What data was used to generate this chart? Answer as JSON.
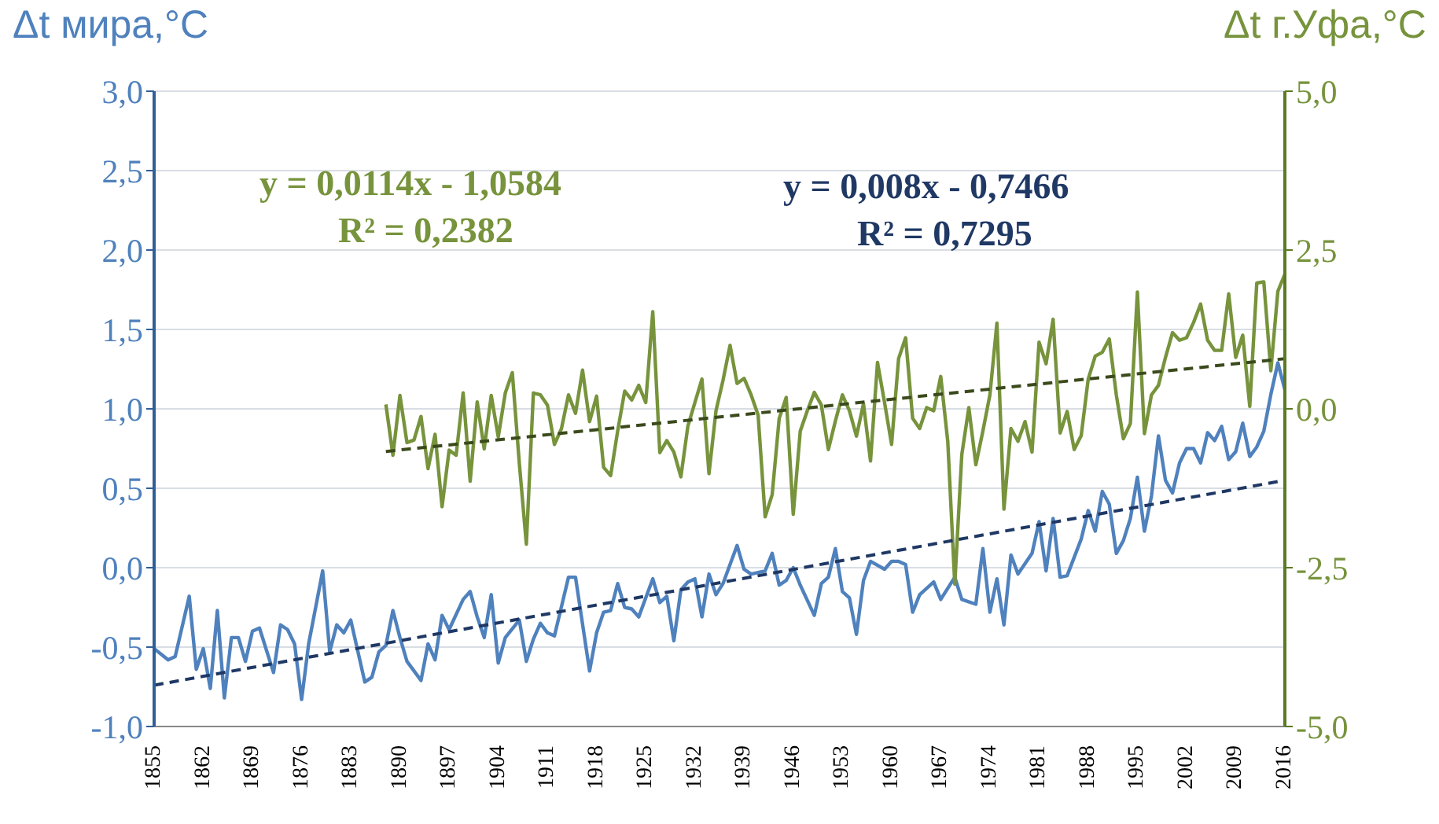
{
  "chart_data": {
    "type": "line",
    "ylabel": "Δt мира,°C",
    "y2label": "Δt г.Уфа,°C",
    "xlim": [
      1855,
      2016
    ],
    "xticks": [
      1855,
      1862,
      1869,
      1876,
      1883,
      1890,
      1897,
      1904,
      1911,
      1918,
      1925,
      1932,
      1939,
      1946,
      1953,
      1960,
      1967,
      1974,
      1981,
      1988,
      1995,
      2002,
      2009,
      2016
    ],
    "ylim": [
      -1,
      3
    ],
    "yticks": [
      {
        "value": -1,
        "label": "-1,0"
      },
      {
        "value": -0.5,
        "label": "-0,5"
      },
      {
        "value": 0,
        "label": "0,0"
      },
      {
        "value": 0.5,
        "label": "0,5"
      },
      {
        "value": 1,
        "label": "1,0"
      },
      {
        "value": 1.5,
        "label": "1,5"
      },
      {
        "value": 2,
        "label": "2,0"
      },
      {
        "value": 2.5,
        "label": "2,5"
      },
      {
        "value": 3,
        "label": "3,0"
      }
    ],
    "y2lim": [
      -5,
      5
    ],
    "y2ticks": [
      {
        "value": -5,
        "label": "-5,0"
      },
      {
        "value": -2.5,
        "label": "-2,5"
      },
      {
        "value": 0,
        "label": "0,0"
      },
      {
        "value": 2.5,
        "label": "2,5"
      },
      {
        "value": 5,
        "label": "5,0"
      }
    ],
    "grid": "y",
    "marker": "none",
    "annotations": [
      "y = 0,0114x - 1,0584",
      "R² = 0,2382",
      "y = 0,008x - 0,7466",
      "R² = 0,7295"
    ],
    "series": [
      {
        "color": "#4f81bd",
        "x": [
          1855,
          1857,
          1858,
          1860,
          1861,
          1862,
          1863,
          1864,
          1865,
          1866,
          1867,
          1868,
          1869,
          1870,
          1872,
          1873,
          1874,
          1875,
          1876,
          1877,
          1879,
          1880,
          1881,
          1882,
          1883,
          1885,
          1886,
          1887,
          1888,
          1889,
          1890,
          1891,
          1893,
          1894,
          1895,
          1896,
          1897,
          1899,
          1900,
          1901,
          1902,
          1903,
          1904,
          1905,
          1907,
          1908,
          1909,
          1910,
          1911,
          1912,
          1914,
          1915,
          1917,
          1918,
          1919,
          1920,
          1921,
          1922,
          1923,
          1924,
          1926,
          1927,
          1928,
          1929,
          1930,
          1931,
          1932,
          1933,
          1934,
          1935,
          1936,
          1938,
          1939,
          1940,
          1941,
          1942,
          1943,
          1944,
          1945,
          1946,
          1947,
          1949,
          1950,
          1951,
          1952,
          1953,
          1954,
          1955,
          1956,
          1957,
          1959,
          1960,
          1961,
          1962,
          1963,
          1964,
          1966,
          1967,
          1969,
          1970,
          1972,
          1973,
          1974,
          1975,
          1976,
          1977,
          1978,
          1980,
          1981,
          1982,
          1983,
          1984,
          1985,
          1987,
          1988,
          1989,
          1990,
          1991,
          1992,
          1993,
          1994,
          1995,
          1996,
          1997,
          1998,
          1999,
          2000,
          2001,
          2002,
          2003,
          2004,
          2005,
          2006,
          2007,
          2008,
          2009,
          2010,
          2011,
          2012,
          2013,
          2014,
          2015,
          2016
        ],
        "values": [
          -0.51,
          -0.58,
          -0.56,
          -0.18,
          -0.64,
          -0.51,
          -0.76,
          -0.27,
          -0.82,
          -0.44,
          -0.44,
          -0.59,
          -0.4,
          -0.38,
          -0.66,
          -0.36,
          -0.39,
          -0.48,
          -0.83,
          -0.48,
          -0.02,
          -0.53,
          -0.36,
          -0.41,
          -0.33,
          -0.72,
          -0.69,
          -0.53,
          -0.49,
          -0.27,
          -0.44,
          -0.59,
          -0.71,
          -0.48,
          -0.58,
          -0.3,
          -0.39,
          -0.2,
          -0.15,
          -0.31,
          -0.44,
          -0.17,
          -0.6,
          -0.44,
          -0.33,
          -0.59,
          -0.45,
          -0.35,
          -0.41,
          -0.43,
          -0.06,
          -0.06,
          -0.65,
          -0.41,
          -0.28,
          -0.27,
          -0.1,
          -0.25,
          -0.26,
          -0.31,
          -0.07,
          -0.22,
          -0.18,
          -0.46,
          -0.14,
          -0.09,
          -0.07,
          -0.31,
          -0.04,
          -0.17,
          -0.1,
          0.14,
          -0.01,
          -0.04,
          -0.03,
          -0.02,
          0.09,
          -0.11,
          -0.08,
          0,
          -0.11,
          -0.3,
          -0.1,
          -0.06,
          0.12,
          -0.15,
          -0.19,
          -0.42,
          -0.08,
          0.04,
          -0.01,
          0.04,
          0.04,
          0.02,
          -0.28,
          -0.17,
          -0.09,
          -0.2,
          -0.06,
          -0.2,
          -0.23,
          0.12,
          -0.28,
          -0.07,
          -0.36,
          0.08,
          -0.04,
          0.09,
          0.29,
          -0.02,
          0.31,
          -0.06,
          -0.05,
          0.18,
          0.36,
          0.23,
          0.48,
          0.4,
          0.09,
          0.17,
          0.31,
          0.57,
          0.23,
          0.45,
          0.83,
          0.55,
          0.47,
          0.66,
          0.75,
          0.75,
          0.66,
          0.85,
          0.8,
          0.89,
          0.68,
          0.73,
          0.91,
          0.7,
          0.76,
          0.86,
          1.09,
          1.29,
          1.12
        ]
      },
      {
        "color": "#77933c",
        "axis": "y2",
        "x": [
          1888,
          1889,
          1890,
          1891,
          1892,
          1893,
          1894,
          1895,
          1896,
          1897,
          1898,
          1899,
          1900,
          1901,
          1902,
          1903,
          1904,
          1905,
          1906,
          1907,
          1908,
          1909,
          1910,
          1911,
          1912,
          1913,
          1914,
          1915,
          1916,
          1917,
          1918,
          1919,
          1920,
          1921,
          1922,
          1923,
          1924,
          1925,
          1926,
          1927,
          1928,
          1929,
          1930,
          1931,
          1932,
          1933,
          1934,
          1935,
          1936,
          1937,
          1938,
          1939,
          1940,
          1941,
          1942,
          1943,
          1944,
          1945,
          1946,
          1947,
          1948,
          1949,
          1950,
          1951,
          1952,
          1953,
          1954,
          1955,
          1956,
          1957,
          1958,
          1959,
          1960,
          1961,
          1962,
          1963,
          1964,
          1965,
          1966,
          1967,
          1968,
          1969,
          1970,
          1971,
          1972,
          1973,
          1974,
          1975,
          1976,
          1977,
          1978,
          1979,
          1980,
          1981,
          1982,
          1983,
          1984,
          1985,
          1986,
          1987,
          1988,
          1989,
          1990,
          1991,
          1992,
          1993,
          1994,
          1995,
          1996,
          1997,
          1998,
          1999,
          2000,
          2001,
          2002,
          2003,
          2004,
          2005,
          2006,
          2007,
          2008,
          2009,
          2010,
          2011,
          2012,
          2013,
          2014,
          2015,
          2016
        ],
        "values": [
          0.07,
          -0.73,
          0.21,
          -0.53,
          -0.49,
          -0.12,
          -0.94,
          -0.4,
          -1.54,
          -0.65,
          -0.73,
          0.25,
          -1.14,
          0.11,
          -0.63,
          0.21,
          -0.44,
          0.25,
          0.57,
          -0.86,
          -2.13,
          0.25,
          0.22,
          0.06,
          -0.56,
          -0.31,
          0.22,
          -0.07,
          0.61,
          -0.2,
          0.2,
          -0.92,
          -1.05,
          -0.35,
          0.28,
          0.14,
          0.37,
          0.1,
          1.53,
          -0.69,
          -0.5,
          -0.68,
          -1.07,
          -0.27,
          0.1,
          0.47,
          -1.02,
          -0.03,
          0.45,
          1,
          0.4,
          0.48,
          0.22,
          -0.1,
          -1.7,
          -1.35,
          -0.15,
          0.18,
          -1.66,
          -0.35,
          -0.03,
          0.26,
          0.06,
          -0.64,
          -0.19,
          0.22,
          -0.03,
          -0.43,
          0.08,
          -0.82,
          0.73,
          0.1,
          -0.56,
          0.79,
          1.12,
          -0.15,
          -0.31,
          0.02,
          -0.03,
          0.51,
          -0.51,
          -2.76,
          -0.72,
          0.02,
          -0.88,
          -0.35,
          0.22,
          1.35,
          -1.58,
          -0.31,
          -0.51,
          -0.2,
          -0.68,
          1.05,
          0.71,
          1.41,
          -0.38,
          -0.04,
          -0.64,
          -0.42,
          0.47,
          0.83,
          0.89,
          1.1,
          0.22,
          -0.47,
          -0.23,
          1.84,
          -0.39,
          0.22,
          0.37,
          0.81,
          1.2,
          1.08,
          1.12,
          1.36,
          1.65,
          1.08,
          0.92,
          0.92,
          1.81,
          0.81,
          1.16,
          0.04,
          1.98,
          2,
          0.6,
          1.85,
          2.12
        ]
      },
      {
        "type": "line",
        "color": "#1f3864",
        "line_style": "dashed",
        "x": [
          1855,
          2016
        ],
        "values": [
          -0.74,
          0.55
        ]
      },
      {
        "type": "line",
        "color": "#3b4a1c",
        "line_style": "dashed",
        "axis": "y2",
        "x": [
          1888,
          2016
        ],
        "values": [
          -0.67,
          0.79
        ]
      }
    ]
  }
}
